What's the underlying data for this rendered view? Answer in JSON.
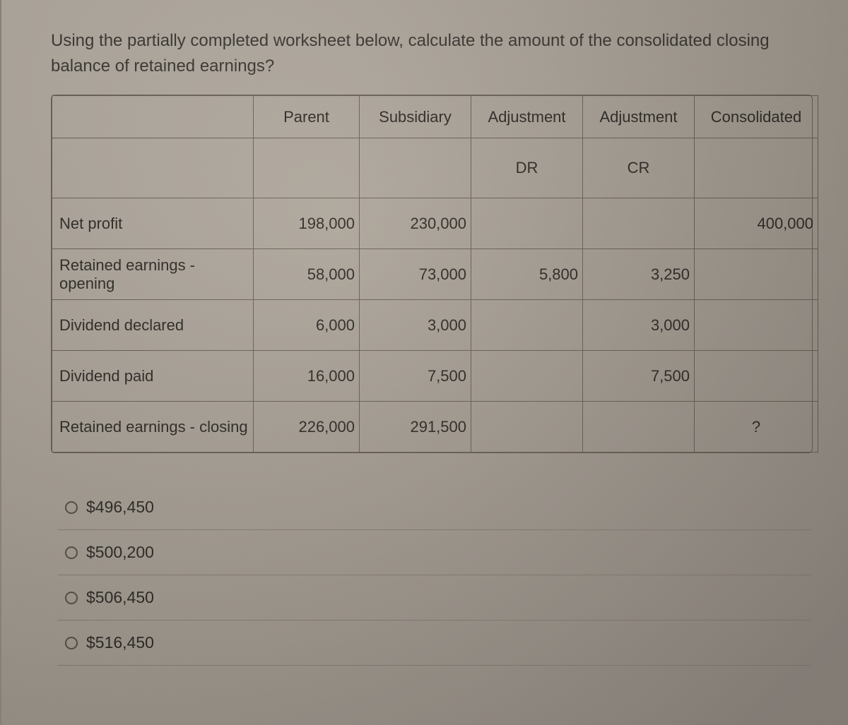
{
  "question_text": "Using the partially completed worksheet below, calculate the amount of the consolidated closing balance of retained earnings?",
  "table": {
    "headers": {
      "c0": "",
      "c1": "Parent",
      "c2": "Subsidiary",
      "c3": "Adjustment",
      "c4": "Adjustment",
      "c5": "Consolidated"
    },
    "subheaders": {
      "dr": "DR",
      "cr": "CR"
    },
    "rows": {
      "r1": {
        "label": "Net profit",
        "parent": "198,000",
        "sub": "230,000",
        "dr": "",
        "cr": "",
        "cons": "400,000"
      },
      "r2": {
        "label": "Retained earnings - opening",
        "parent": "58,000",
        "sub": "73,000",
        "dr": "5,800",
        "cr": "3,250",
        "cons": ""
      },
      "r3": {
        "label": "Dividend declared",
        "parent": "6,000",
        "sub": "3,000",
        "dr": "",
        "cr": "3,000",
        "cons": ""
      },
      "r4": {
        "label": "Dividend paid",
        "parent": "16,000",
        "sub": "7,500",
        "dr": "",
        "cr": "7,500",
        "cons": ""
      },
      "r5": {
        "label": "Retained earnings - closing",
        "parent": "226,000",
        "sub": "291,500",
        "dr": "",
        "cr": "",
        "cons": "?"
      }
    }
  },
  "options": {
    "a": "$496,450",
    "b": "$500,200",
    "c": "$506,450",
    "d": "$516,450"
  },
  "colors": {
    "bg": "#a8a095",
    "border": "#6a6258",
    "text": "#2e2a26"
  }
}
